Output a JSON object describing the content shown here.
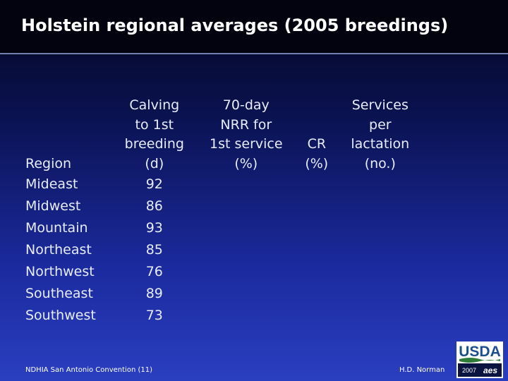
{
  "slide": {
    "title": "Holstein regional averages (2005 breedings)"
  },
  "table": {
    "headers": {
      "region": [
        "Region"
      ],
      "calving": [
        "Calving",
        "to 1st",
        "breeding",
        "(d)"
      ],
      "nrr": [
        "70-day",
        "NRR for",
        "1st service",
        "(%)"
      ],
      "cr": [
        "CR",
        "(%)"
      ],
      "services": [
        "Services",
        "per",
        "lactation",
        "(no.)"
      ]
    },
    "rows": [
      {
        "region": "Mideast",
        "calving": "92",
        "nrr": "",
        "cr": "",
        "services": ""
      },
      {
        "region": "Midwest",
        "calving": "86",
        "nrr": "",
        "cr": "",
        "services": ""
      },
      {
        "region": "Mountain",
        "calving": "93",
        "nrr": "",
        "cr": "",
        "services": ""
      },
      {
        "region": "Northeast",
        "calving": "85",
        "nrr": "",
        "cr": "",
        "services": ""
      },
      {
        "region": "Northwest",
        "calving": "76",
        "nrr": "",
        "cr": "",
        "services": ""
      },
      {
        "region": "Southeast",
        "calving": "89",
        "nrr": "",
        "cr": "",
        "services": ""
      },
      {
        "region": "Southwest",
        "calving": "73",
        "nrr": "",
        "cr": "",
        "services": ""
      }
    ]
  },
  "footer": {
    "left": "NDHIA San Antonio Convention (11)",
    "right": "H.D. Norman"
  },
  "logo": {
    "text": "USDA",
    "year": "2007",
    "mark": "aes",
    "colors": {
      "blue": "#1d4f8f",
      "green": "#2e7d3a"
    }
  }
}
